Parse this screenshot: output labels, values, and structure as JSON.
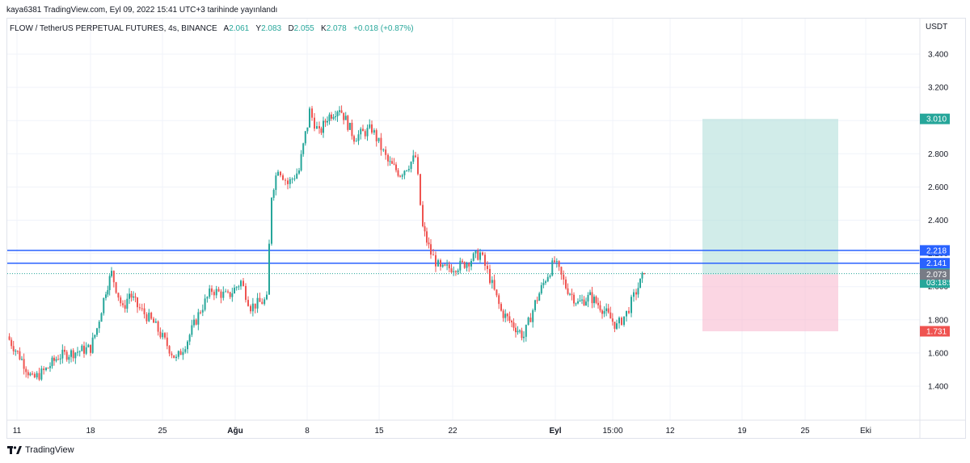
{
  "publisher_line": "kaya6381 TradingView.com, Eyl 09, 2022 15:41 UTC+3 tarihinde yayınlandı",
  "symbol_bar": {
    "symbol": "FLOW / TetherUS PERPETUAL FUTURES, 4s, BINANCE",
    "open_label": "A",
    "open": "2.061",
    "high_label": "Y",
    "high": "2.083",
    "low_label": "D",
    "low": "2.055",
    "close_label": "K",
    "close": "2.078",
    "change": "+0.018 (+0.87%)"
  },
  "currency": "USDT",
  "branding": "TradingView",
  "colors": {
    "up": "#26a69a",
    "down": "#ef5350",
    "level_line": "#2962ff",
    "target_zone": "#b2dfdb",
    "stop_zone": "#f8bbd0",
    "grid": "#f0f3fa"
  },
  "price_tags": [
    {
      "value": "3.010",
      "color": "#26a69a"
    },
    {
      "value": "2.218",
      "color": "#2962ff"
    },
    {
      "value": "2.141",
      "color": "#2962ff"
    },
    {
      "value": "2.078",
      "sub": "03:18:59",
      "color": "#26a69a"
    },
    {
      "value": "2.073",
      "color": "#787b86"
    },
    {
      "value": "1.731",
      "color": "#ef5350"
    }
  ],
  "chart_data": {
    "type": "candlestick",
    "title": "FLOW / TetherUS PERPETUAL FUTURES, 4s, BINANCE",
    "y_ticks": [
      "1.400",
      "1.600",
      "1.800",
      "2.000",
      "2.200",
      "2.400",
      "2.600",
      "2.800",
      "3.000",
      "3.200",
      "3.400"
    ],
    "ylim": [
      1.28,
      3.55
    ],
    "x_ticks": [
      "11",
      "18",
      "25",
      "Ağu",
      "8",
      "15",
      "22",
      "Eyl",
      "15:00",
      "12",
      "19",
      "25",
      "Eki"
    ],
    "x_tick_bold": [
      "Ağu",
      "Eyl"
    ],
    "grid": true,
    "horizontal_levels": [
      2.218,
      2.141
    ],
    "last_price": 2.078,
    "position": {
      "type": "long",
      "entry": 2.073,
      "target": 3.01,
      "stop": 1.731
    },
    "close_path": [
      {
        "date": "Jul 10",
        "close": 1.7
      },
      {
        "date": "Jul 12",
        "close": 1.56
      },
      {
        "date": "Jul 13",
        "close": 1.44
      },
      {
        "date": "Jul 14",
        "close": 1.5
      },
      {
        "date": "Jul 16",
        "close": 1.58
      },
      {
        "date": "Jul 18",
        "close": 1.63
      },
      {
        "date": "Jul 19",
        "close": 1.75
      },
      {
        "date": "Jul 20",
        "close": 1.98
      },
      {
        "date": "Jul 21",
        "close": 2.08
      },
      {
        "date": "Jul 22",
        "close": 1.86
      },
      {
        "date": "Jul 23",
        "close": 1.96
      },
      {
        "date": "Jul 24",
        "close": 1.88
      },
      {
        "date": "Jul 25",
        "close": 1.78
      },
      {
        "date": "Jul 26",
        "close": 1.56
      },
      {
        "date": "Jul 27",
        "close": 1.68
      },
      {
        "date": "Jul 28",
        "close": 1.86
      },
      {
        "date": "Jul 29",
        "close": 1.98
      },
      {
        "date": "Jul 30",
        "close": 1.94
      },
      {
        "date": "Jul 31",
        "close": 2.03
      },
      {
        "date": "Aug 1",
        "close": 1.88
      },
      {
        "date": "Aug 3",
        "close": 1.92
      },
      {
        "date": "Aug 4",
        "close": 2.56
      },
      {
        "date": "Aug 5",
        "close": 2.72
      },
      {
        "date": "Aug 6",
        "close": 2.62
      },
      {
        "date": "Aug 7",
        "close": 2.7
      },
      {
        "date": "Aug 8",
        "close": 3.05
      },
      {
        "date": "Aug 9",
        "close": 2.92
      },
      {
        "date": "Aug 10",
        "close": 3.02
      },
      {
        "date": "Aug 11",
        "close": 3.08
      },
      {
        "date": "Aug 12",
        "close": 2.9
      },
      {
        "date": "Aug 14",
        "close": 2.95
      },
      {
        "date": "Aug 16",
        "close": 2.75
      },
      {
        "date": "Aug 17",
        "close": 2.68
      },
      {
        "date": "Aug 18",
        "close": 2.78
      },
      {
        "date": "Aug 19",
        "close": 2.35
      },
      {
        "date": "Aug 20",
        "close": 2.2
      },
      {
        "date": "Aug 21",
        "close": 2.1
      },
      {
        "date": "Aug 23",
        "close": 2.13
      },
      {
        "date": "Aug 25",
        "close": 2.2
      },
      {
        "date": "Aug 26",
        "close": 2.05
      },
      {
        "date": "Aug 27",
        "close": 1.85
      },
      {
        "date": "Aug 28",
        "close": 1.78
      },
      {
        "date": "Aug 29",
        "close": 1.7
      },
      {
        "date": "Aug 30",
        "close": 1.9
      },
      {
        "date": "Aug 31",
        "close": 2.05
      },
      {
        "date": "Sep 1",
        "close": 2.15
      },
      {
        "date": "Sep 2",
        "close": 2.0
      },
      {
        "date": "Sep 3",
        "close": 1.9
      },
      {
        "date": "Sep 4",
        "close": 1.94
      },
      {
        "date": "Sep 5",
        "close": 1.87
      },
      {
        "date": "Sep 6",
        "close": 1.76
      },
      {
        "date": "Sep 7",
        "close": 1.84
      },
      {
        "date": "Sep 8",
        "close": 1.97
      },
      {
        "date": "Sep 9",
        "close": 2.078
      }
    ]
  }
}
